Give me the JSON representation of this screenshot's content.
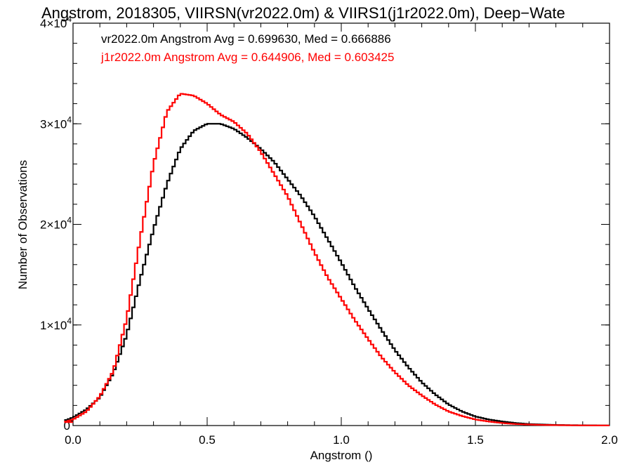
{
  "chart_data": {
    "type": "line",
    "title": "Angstrom, 2018305, VIIRSN(vr2022.0m) & VIIRS1(j1r2022.0m), Deep−Wate",
    "xlabel": "Angstrom ()",
    "ylabel": "Number of Observations",
    "xlim": [
      0.0,
      2.0
    ],
    "ylim": [
      0,
      40000
    ],
    "x_ticks": [
      "0.0",
      "0.5",
      "1.0",
      "1.5",
      "2.0"
    ],
    "y_ticks": [
      {
        "value": 0,
        "mantissa": "0",
        "exponent": ""
      },
      {
        "value": 10000,
        "mantissa": "1×10",
        "exponent": "4"
      },
      {
        "value": 20000,
        "mantissa": "2×10",
        "exponent": "4"
      },
      {
        "value": 30000,
        "mantissa": "3×10",
        "exponent": "4"
      },
      {
        "value": 40000,
        "mantissa": "4×10",
        "exponent": "4"
      }
    ],
    "annotations": [
      {
        "text": "vr2022.0m Angstrom Avg = 0.699630, Med = 0.666886",
        "color": "#000000"
      },
      {
        "text": "j1r2022.0m Angstrom Avg = 0.644906, Med = 0.603425",
        "color": "#ff0000"
      }
    ],
    "series": [
      {
        "color": "#000000",
        "x": [
          -0.04,
          0.0,
          0.05,
          0.1,
          0.15,
          0.2,
          0.25,
          0.3,
          0.35,
          0.4,
          0.45,
          0.5,
          0.55,
          0.6,
          0.65,
          0.7,
          0.75,
          0.8,
          0.85,
          0.9,
          0.95,
          1.0,
          1.05,
          1.1,
          1.15,
          1.2,
          1.25,
          1.3,
          1.35,
          1.4,
          1.45,
          1.5,
          1.55,
          1.6,
          1.65,
          1.7,
          1.75,
          1.8,
          1.85,
          1.9,
          1.95,
          2.0
        ],
        "y": [
          400,
          800,
          1600,
          2800,
          5200,
          9000,
          14500,
          19500,
          24000,
          27500,
          29300,
          30000,
          30000,
          29500,
          28600,
          27500,
          26200,
          24500,
          22800,
          20800,
          18500,
          16200,
          13800,
          11600,
          9500,
          7500,
          5800,
          4300,
          3100,
          2100,
          1400,
          900,
          600,
          400,
          250,
          150,
          100,
          60,
          40,
          25,
          15,
          10
        ]
      },
      {
        "color": "#ff0000",
        "x": [
          -0.04,
          0.0,
          0.05,
          0.1,
          0.15,
          0.2,
          0.25,
          0.3,
          0.35,
          0.4,
          0.45,
          0.5,
          0.55,
          0.6,
          0.65,
          0.7,
          0.75,
          0.8,
          0.85,
          0.9,
          0.95,
          1.0,
          1.05,
          1.1,
          1.15,
          1.2,
          1.25,
          1.3,
          1.35,
          1.4,
          1.45,
          1.5,
          1.55,
          1.6,
          1.65,
          1.7,
          1.75,
          1.8,
          1.85,
          1.9,
          1.95,
          2.0
        ],
        "y": [
          300,
          600,
          1400,
          2900,
          5400,
          10600,
          18500,
          26000,
          31200,
          33000,
          32800,
          32000,
          30900,
          30200,
          29000,
          27200,
          25000,
          22800,
          20000,
          17200,
          14700,
          12600,
          10500,
          8600,
          6800,
          5300,
          4000,
          3000,
          2100,
          1400,
          950,
          600,
          400,
          250,
          150,
          100,
          60,
          40,
          25,
          15,
          10,
          5
        ]
      }
    ]
  }
}
